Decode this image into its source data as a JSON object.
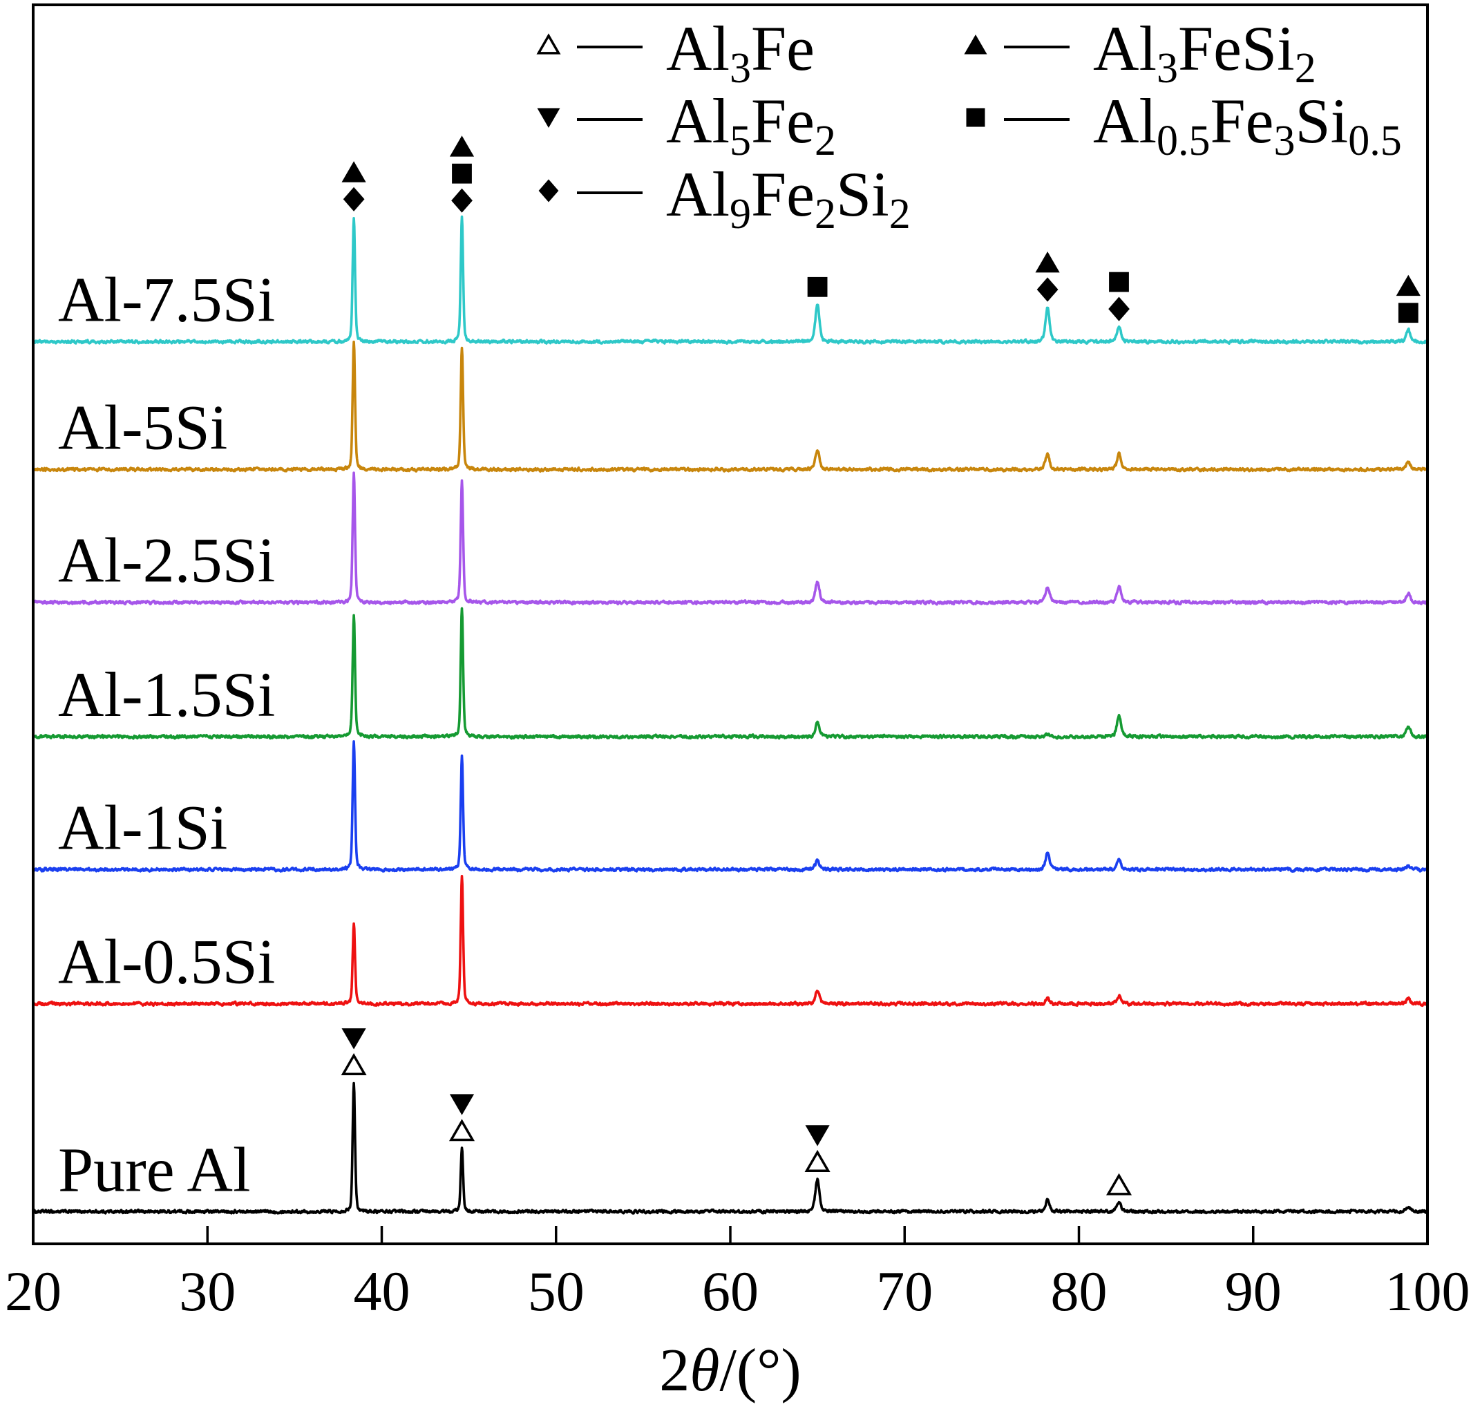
{
  "chart_data": {
    "type": "line",
    "title": "",
    "ylabel": "",
    "xlabel_parts": [
      "2",
      "θ",
      "/(°)"
    ],
    "xlim": [
      20,
      100
    ],
    "ylim": [
      -25,
      935
    ],
    "xticks": [
      20,
      30,
      40,
      50,
      60,
      70,
      80,
      90,
      100
    ],
    "grid": false,
    "legend": {
      "placement": "top-right",
      "entries": [
        {
          "symbol": "open-triangle-icon",
          "parts": [
            "Al",
            "3",
            "Fe"
          ]
        },
        {
          "symbol": "down-triangle-icon",
          "parts": [
            "Al",
            "5",
            "Fe",
            "2"
          ]
        },
        {
          "symbol": "diamond-icon",
          "parts": [
            "Al",
            "9",
            "Fe",
            "2",
            "Si",
            "2"
          ]
        },
        {
          "symbol": "triangle-icon",
          "parts": [
            "Al",
            "3",
            "FeSi",
            "2"
          ]
        },
        {
          "symbol": "square-icon",
          "parts": [
            "Al",
            "0.5",
            "Fe",
            "3",
            "Si",
            "0.5"
          ]
        }
      ]
    },
    "series": [
      {
        "name": "Pure Al",
        "color": "#000000",
        "offset": 0,
        "peaks": [
          [
            38.4,
            100
          ],
          [
            44.6,
            49
          ],
          [
            65.0,
            25
          ],
          [
            78.2,
            9
          ],
          [
            82.3,
            7
          ],
          [
            98.9,
            4
          ]
        ]
      },
      {
        "name": "Al-0.5Si",
        "color": "#ee1111",
        "offset": 161,
        "peaks": [
          [
            38.4,
            62
          ],
          [
            44.6,
            99
          ],
          [
            65.0,
            10
          ],
          [
            78.2,
            4
          ],
          [
            82.3,
            6
          ],
          [
            98.9,
            4
          ]
        ]
      },
      {
        "name": "Al-1Si",
        "color": "#1a3ff0",
        "offset": 265,
        "peaks": [
          [
            38.4,
            99
          ],
          [
            44.6,
            88
          ],
          [
            65.0,
            7
          ],
          [
            78.2,
            13
          ],
          [
            82.3,
            8
          ],
          [
            98.9,
            3
          ]
        ]
      },
      {
        "name": "Al-1.5Si",
        "color": "#159a32",
        "offset": 368,
        "peaks": [
          [
            38.4,
            94
          ],
          [
            44.6,
            100
          ],
          [
            65.0,
            11
          ],
          [
            78.2,
            2
          ],
          [
            82.3,
            17
          ],
          [
            98.9,
            8
          ]
        ]
      },
      {
        "name": "Al-2.5Si",
        "color": "#a656ea",
        "offset": 472,
        "peaks": [
          [
            38.4,
            100
          ],
          [
            44.6,
            95
          ],
          [
            65.0,
            16
          ],
          [
            78.2,
            12
          ],
          [
            82.3,
            12
          ],
          [
            98.9,
            7
          ]
        ]
      },
      {
        "name": "Al-5Si",
        "color": "#c8860c",
        "offset": 575,
        "peaks": [
          [
            38.4,
            100
          ],
          [
            44.6,
            94
          ],
          [
            65.0,
            15
          ],
          [
            78.2,
            12
          ],
          [
            82.3,
            12
          ],
          [
            98.9,
            6
          ]
        ]
      },
      {
        "name": "Al-7.5Si",
        "color": "#2ec8c8",
        "offset": 674,
        "peaks": [
          [
            38.4,
            97
          ],
          [
            44.6,
            96
          ],
          [
            65.0,
            29
          ],
          [
            78.2,
            27
          ],
          [
            82.3,
            12
          ],
          [
            98.9,
            9
          ]
        ]
      }
    ],
    "annotations": [
      {
        "series": 0,
        "x": 38.4,
        "symbols": [
          "open-triangle-icon",
          "down-triangle-icon"
        ]
      },
      {
        "series": 0,
        "x": 44.6,
        "symbols": [
          "open-triangle-icon",
          "down-triangle-icon"
        ]
      },
      {
        "series": 0,
        "x": 65.0,
        "symbols": [
          "open-triangle-icon",
          "down-triangle-icon"
        ]
      },
      {
        "series": 0,
        "x": 82.3,
        "symbols": [
          "open-triangle-icon"
        ]
      },
      {
        "series": 6,
        "x": 38.4,
        "symbols": [
          "diamond-icon",
          "triangle-icon"
        ]
      },
      {
        "series": 6,
        "x": 44.6,
        "symbols": [
          "diamond-icon",
          "square-icon",
          "triangle-icon"
        ]
      },
      {
        "series": 6,
        "x": 65.0,
        "symbols": [
          "square-icon"
        ]
      },
      {
        "series": 6,
        "x": 78.2,
        "symbols": [
          "diamond-icon",
          "triangle-icon"
        ]
      },
      {
        "series": 6,
        "x": 82.3,
        "symbols": [
          "diamond-icon",
          "square-icon"
        ]
      },
      {
        "series": 6,
        "x": 98.9,
        "symbols": [
          "square-icon",
          "triangle-icon"
        ]
      }
    ]
  }
}
